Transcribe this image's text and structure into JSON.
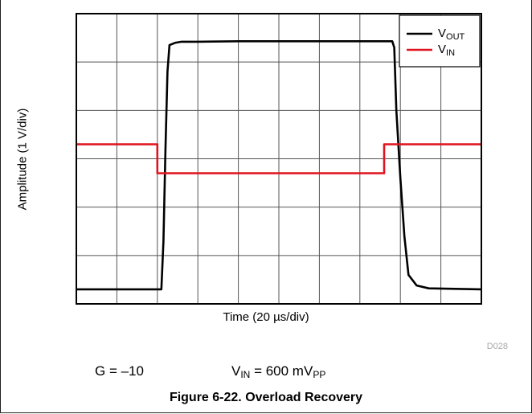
{
  "chart_data": {
    "type": "line",
    "title": "",
    "xlabel_prefix": "Time (20 ",
    "xlabel_unit": "µs/div)",
    "ylabel": "Amplitude (1 V/div)",
    "grid": true,
    "x_divisions": 10,
    "y_divisions": 6,
    "xlim": [
      0,
      10
    ],
    "ylim": [
      0,
      6
    ],
    "legend_position": "top-right",
    "series": [
      {
        "name": "VOUT",
        "name_main": "V",
        "name_sub": "OUT",
        "color": "#000000",
        "x": [
          0,
          2.05,
          2.1,
          2.15,
          2.2,
          2.25,
          2.3,
          2.45,
          2.6,
          3.0,
          4.0,
          6.0,
          7.8,
          7.85,
          7.9,
          8.0,
          8.1,
          8.2,
          8.4,
          8.7,
          10
        ],
        "y": [
          0.3,
          0.3,
          0.3,
          1.3,
          3.2,
          4.8,
          5.35,
          5.4,
          5.42,
          5.42,
          5.43,
          5.43,
          5.43,
          5.3,
          4.0,
          2.6,
          1.4,
          0.6,
          0.38,
          0.32,
          0.3
        ]
      },
      {
        "name": "VIN",
        "name_main": "V",
        "name_sub": "IN",
        "color": "#e0141e",
        "x": [
          0,
          2.0,
          2.0,
          7.6,
          7.6,
          10
        ],
        "y": [
          3.3,
          3.3,
          2.7,
          2.7,
          3.3,
          3.3
        ]
      }
    ]
  },
  "code": "D028",
  "conditions": {
    "gain": "G = –10",
    "vin_main": "V",
    "vin_sub": "IN",
    "vin_value": " = 600 mV",
    "vin_unit_sub": "PP"
  },
  "caption": "Figure 6-22. Overload Recovery",
  "colors": {
    "grid": "#555555",
    "vout": "#000000",
    "vin": "#e0141e"
  }
}
